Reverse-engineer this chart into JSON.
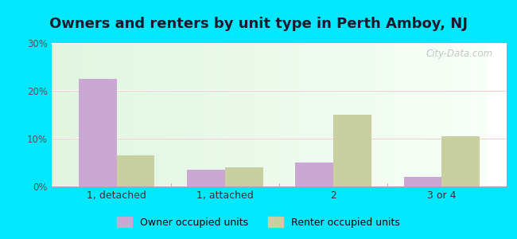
{
  "title": "Owners and renters by unit type in Perth Amboy, NJ",
  "categories": [
    "1, detached",
    "1, attached",
    "2",
    "3 or 4"
  ],
  "owner_values": [
    22.5,
    3.5,
    5.0,
    2.0
  ],
  "renter_values": [
    6.5,
    4.0,
    15.0,
    10.5
  ],
  "owner_color": "#c9a8d4",
  "renter_color": "#c8cfa0",
  "ylim": [
    0,
    30
  ],
  "yticks": [
    0,
    10,
    20,
    30
  ],
  "ytick_labels": [
    "0%",
    "10%",
    "20%",
    "30%"
  ],
  "bar_width": 0.35,
  "outer_color": "#00e8ff",
  "legend_owner": "Owner occupied units",
  "legend_renter": "Renter occupied units",
  "title_fontsize": 13,
  "watermark": "City-Data.com"
}
